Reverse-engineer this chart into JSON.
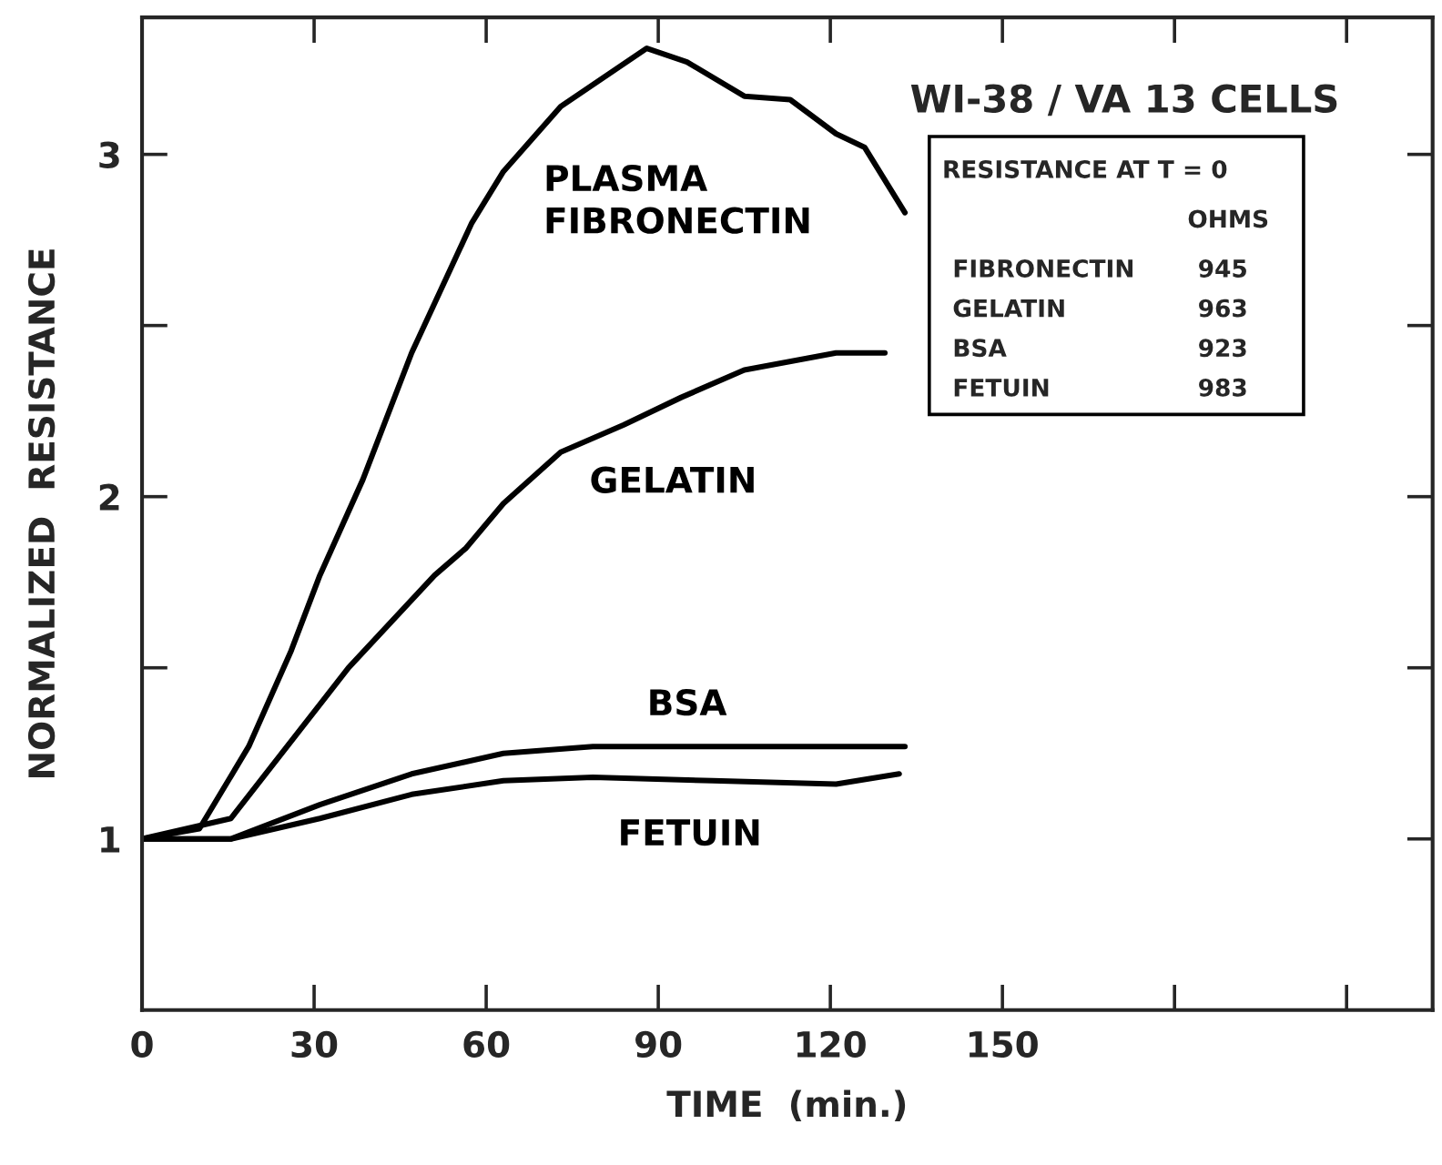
{
  "chart_data": {
    "type": "line",
    "xlabel": "TIME  (min.)",
    "ylabel": "NORMALIZED  RESISTANCE",
    "series": [
      {
        "name": "PLASMA\nFIBRONECTIN",
        "color": "#000000",
        "x": [
          0,
          10,
          18.6,
          26,
          31,
          38.5,
          47,
          57.5,
          63,
          73,
          88,
          95,
          105,
          113,
          121,
          126,
          133
        ],
        "values": [
          1.0,
          1.03,
          1.27,
          1.55,
          1.77,
          2.05,
          2.42,
          2.8,
          2.95,
          3.14,
          3.31,
          3.27,
          3.17,
          3.16,
          3.06,
          3.02,
          2.83
        ]
      },
      {
        "name": "GELATIN",
        "color": "#000000",
        "x": [
          0,
          15.5,
          36,
          51,
          56.5,
          63,
          73,
          84,
          94,
          105,
          121,
          129.5
        ],
        "values": [
          1.0,
          1.06,
          1.5,
          1.77,
          1.85,
          1.98,
          2.13,
          2.21,
          2.29,
          2.37,
          2.42,
          2.42
        ]
      },
      {
        "name": "BSA",
        "color": "#000000",
        "x": [
          0,
          15.5,
          31,
          47,
          63,
          78.6,
          99.5,
          133
        ],
        "values": [
          1.0,
          1.0,
          1.1,
          1.19,
          1.25,
          1.27,
          1.27,
          1.27
        ]
      },
      {
        "name": "FETUIN",
        "color": "#000000",
        "x": [
          0,
          15.5,
          31,
          47,
          63,
          78.6,
          99.5,
          121,
          132
        ],
        "values": [
          1.0,
          1.0,
          1.06,
          1.13,
          1.17,
          1.18,
          1.17,
          1.16,
          1.19
        ]
      }
    ],
    "xlim": [
      0,
      225
    ],
    "xticks": [
      0,
      30,
      60,
      90,
      120,
      150,
      {
        "value": 180,
        "label": null
      },
      {
        "value": 210,
        "label": null
      }
    ],
    "ylim": [
      0.5,
      3.4
    ],
    "yticks": [
      1,
      {
        "value": 1.5,
        "label": null
      },
      2,
      {
        "value": 2.5,
        "label": null
      },
      3
    ],
    "grid": false,
    "legend": false,
    "marker": "none",
    "line_style": "solid",
    "annotations": [
      "WI-38 / VA 13 CELLS",
      "RESISTANCE AT T = 0",
      "OHMS",
      "FIBRONECTIN",
      "945",
      "GELATIN",
      "963",
      "BSA",
      "923",
      "FETUIN",
      "983"
    ]
  }
}
